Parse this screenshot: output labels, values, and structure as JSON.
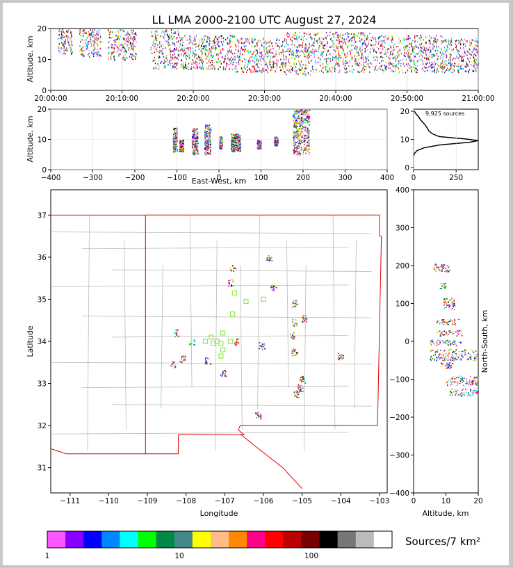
{
  "title": "LL LMA 2000-2100 UTC August 27, 2024",
  "colors": {
    "colorbar": [
      "#ff55ff",
      "#8800ff",
      "#0000ff",
      "#0088ff",
      "#00ffff",
      "#00ff00",
      "#008844",
      "#448888",
      "#ffff00",
      "#ffbb88",
      "#ff8800",
      "#ff0088",
      "#ff0000",
      "#bb0000",
      "#770000",
      "#000000",
      "#777777",
      "#bbbbbb",
      "#ffffff"
    ],
    "state_border": "#dd0000",
    "county_lines": "#bbbbbb",
    "stations": "#88ee44"
  },
  "chart_data": [
    {
      "type": "scatter",
      "name": "time-altitude",
      "ylabel": "Altitude, km",
      "xlabel": "",
      "x_ticks": [
        "20:00:00",
        "20:10:00",
        "20:20:00",
        "20:30:00",
        "20:40:00",
        "20:50:00",
        "21:00:00"
      ],
      "xlim_minutes": [
        0,
        60
      ],
      "ylim": [
        0,
        20
      ],
      "y_ticks": [
        0,
        10,
        20
      ],
      "density_bands": [
        {
          "x": [
            1,
            3
          ],
          "y": [
            12,
            20
          ]
        },
        {
          "x": [
            4,
            7
          ],
          "y": [
            11,
            20
          ]
        },
        {
          "x": [
            8,
            12
          ],
          "y": [
            10,
            20
          ]
        },
        {
          "x": [
            14,
            18
          ],
          "y": [
            7,
            20
          ]
        },
        {
          "x": [
            18,
            26
          ],
          "y": [
            7,
            18
          ]
        },
        {
          "x": [
            26,
            33
          ],
          "y": [
            6,
            17
          ]
        },
        {
          "x": [
            33,
            38
          ],
          "y": [
            5,
            19
          ]
        },
        {
          "x": [
            38,
            46
          ],
          "y": [
            6,
            19
          ]
        },
        {
          "x": [
            46,
            55
          ],
          "y": [
            6,
            18
          ]
        },
        {
          "x": [
            55,
            60
          ],
          "y": [
            6,
            17
          ]
        }
      ]
    },
    {
      "type": "scatter",
      "name": "east-west-altitude",
      "ylabel": "Altitude, km",
      "xlabel": "East-West, km",
      "x_ticks": [
        -400,
        -300,
        -200,
        -100,
        0,
        100,
        200,
        300,
        400
      ],
      "xlim": [
        -400,
        400
      ],
      "ylim": [
        0,
        20
      ],
      "y_ticks": [
        0,
        10,
        20
      ],
      "clusters": [
        {
          "x": [
            -110,
            -100
          ],
          "y": [
            6,
            14
          ]
        },
        {
          "x": [
            -95,
            -85
          ],
          "y": [
            6,
            10
          ]
        },
        {
          "x": [
            -65,
            -50
          ],
          "y": [
            5,
            14
          ]
        },
        {
          "x": [
            -35,
            -20
          ],
          "y": [
            5,
            15
          ]
        },
        {
          "x": [
            0,
            8
          ],
          "y": [
            7,
            11
          ]
        },
        {
          "x": [
            28,
            50
          ],
          "y": [
            6,
            12
          ]
        },
        {
          "x": [
            90,
            100
          ],
          "y": [
            7,
            10
          ]
        },
        {
          "x": [
            130,
            140
          ],
          "y": [
            8,
            11
          ]
        },
        {
          "x": [
            175,
            215
          ],
          "y": [
            5,
            20
          ]
        }
      ]
    },
    {
      "type": "line",
      "name": "altitude-histogram",
      "annotation": "9,925 sources",
      "x_ticks": [
        0,
        250
      ],
      "xlim": [
        0,
        380
      ],
      "y_ticks": [
        0,
        10,
        20
      ],
      "ylim": [
        0,
        20
      ],
      "profile": [
        [
          0,
          4
        ],
        [
          5,
          5
        ],
        [
          20,
          6
        ],
        [
          60,
          7
        ],
        [
          150,
          8
        ],
        [
          330,
          9
        ],
        [
          380,
          9.6
        ],
        [
          300,
          10.2
        ],
        [
          150,
          11
        ],
        [
          110,
          12
        ],
        [
          90,
          13
        ],
        [
          80,
          14
        ],
        [
          70,
          15
        ],
        [
          55,
          16
        ],
        [
          40,
          17
        ],
        [
          30,
          18
        ],
        [
          15,
          19
        ],
        [
          5,
          20
        ]
      ]
    },
    {
      "type": "scatter",
      "name": "plan-view",
      "xlabel": "Longitude",
      "ylabel": "Latitude",
      "x_ticks": [
        -111,
        -110,
        -109,
        -108,
        -107,
        -106,
        -105,
        -104,
        -103
      ],
      "xlim": [
        -111.5,
        -102.8
      ],
      "y_ticks": [
        31,
        32,
        33,
        34,
        35,
        36,
        37
      ],
      "ylim": [
        30.4,
        37.6
      ],
      "clusters": [
        {
          "lon": -106.8,
          "lat": 35.75
        },
        {
          "lon": -106.85,
          "lat": 35.4
        },
        {
          "lon": -105.85,
          "lat": 36.0
        },
        {
          "lon": -105.75,
          "lat": 35.3
        },
        {
          "lon": -105.2,
          "lat": 34.9
        },
        {
          "lon": -105.2,
          "lat": 34.45
        },
        {
          "lon": -104.95,
          "lat": 34.55
        },
        {
          "lon": -105.25,
          "lat": 34.15
        },
        {
          "lon": -105.2,
          "lat": 33.75
        },
        {
          "lon": -105.0,
          "lat": 33.1
        },
        {
          "lon": -105.05,
          "lat": 32.9
        },
        {
          "lon": -105.15,
          "lat": 32.75
        },
        {
          "lon": -107.85,
          "lat": 34.0
        },
        {
          "lon": -108.1,
          "lat": 33.6
        },
        {
          "lon": -107.45,
          "lat": 33.55
        },
        {
          "lon": -107.05,
          "lat": 33.25
        },
        {
          "lon": -108.25,
          "lat": 34.2
        },
        {
          "lon": -106.7,
          "lat": 34.0
        },
        {
          "lon": -106.05,
          "lat": 33.9
        },
        {
          "lon": -108.35,
          "lat": 33.45
        },
        {
          "lon": -106.15,
          "lat": 32.25
        },
        {
          "lon": -104.0,
          "lat": 33.65
        }
      ],
      "stations": [
        {
          "lon": -106.75,
          "lat": 35.15
        },
        {
          "lon": -106.45,
          "lat": 34.95
        },
        {
          "lon": -106.0,
          "lat": 35.0
        },
        {
          "lon": -106.8,
          "lat": 34.65
        },
        {
          "lon": -107.35,
          "lat": 34.1
        },
        {
          "lon": -107.05,
          "lat": 34.2
        },
        {
          "lon": -107.5,
          "lat": 34.0
        },
        {
          "lon": -107.3,
          "lat": 33.95
        },
        {
          "lon": -107.1,
          "lat": 33.95
        },
        {
          "lon": -106.85,
          "lat": 34.0
        },
        {
          "lon": -107.05,
          "lat": 33.8
        },
        {
          "lon": -107.1,
          "lat": 33.65
        },
        {
          "lon": -107.2,
          "lat": 34.0
        }
      ]
    },
    {
      "type": "scatter",
      "name": "altitude-north-south",
      "xlabel": "Altitude, km",
      "ylabel": "North-South, km",
      "x_ticks": [
        0,
        10,
        20
      ],
      "xlim": [
        0,
        20
      ],
      "y_ticks": [
        -400,
        -300,
        -200,
        -100,
        0,
        100,
        200,
        300,
        400
      ],
      "ylim": [
        -400,
        400
      ],
      "clusters": [
        {
          "alt": [
            6,
            11
          ],
          "ns": [
            185,
            205
          ]
        },
        {
          "alt": [
            8,
            10
          ],
          "ns": [
            140,
            155
          ]
        },
        {
          "alt": [
            9,
            13
          ],
          "ns": [
            85,
            115
          ]
        },
        {
          "alt": [
            7,
            14
          ],
          "ns": [
            45,
            60
          ]
        },
        {
          "alt": [
            7,
            15
          ],
          "ns": [
            15,
            30
          ]
        },
        {
          "alt": [
            5,
            15
          ],
          "ns": [
            -10,
            5
          ]
        },
        {
          "alt": [
            5,
            20
          ],
          "ns": [
            -50,
            -20
          ]
        },
        {
          "alt": [
            8,
            12
          ],
          "ns": [
            -70,
            -55
          ]
        },
        {
          "alt": [
            10,
            20
          ],
          "ns": [
            -115,
            -90
          ]
        },
        {
          "alt": [
            11,
            20
          ],
          "ns": [
            -145,
            -125
          ]
        }
      ]
    }
  ],
  "colorbar": {
    "label": "Sources/7 km²",
    "tick_labels": [
      "1",
      "10",
      "100"
    ]
  }
}
